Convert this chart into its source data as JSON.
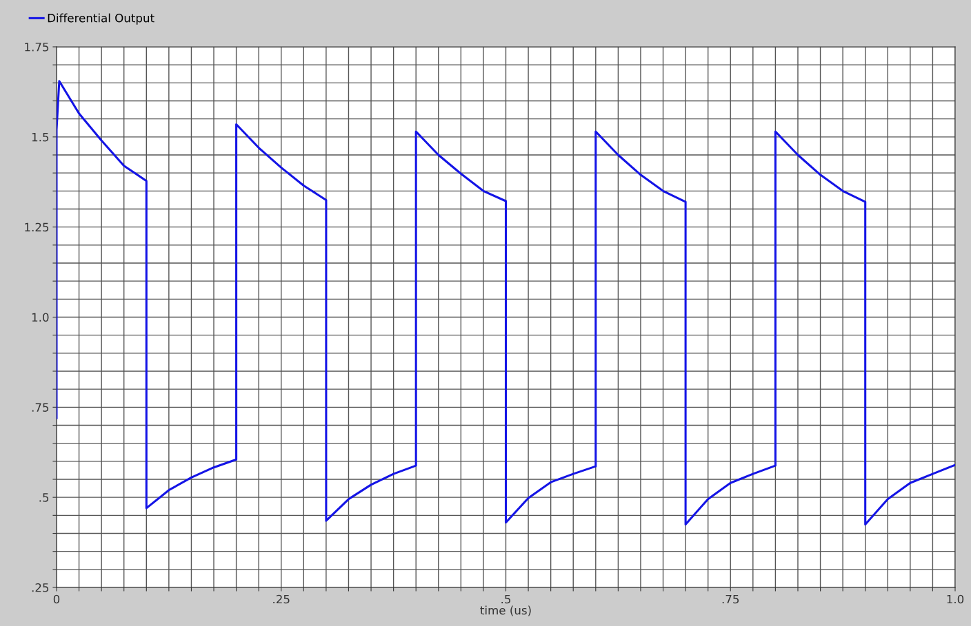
{
  "chart_data": {
    "type": "line",
    "xlabel": "time (us)",
    "legend": "top left",
    "grid": true,
    "line_style": "solid",
    "xlim": [
      0,
      1.0
    ],
    "ylim": [
      0.25,
      1.75
    ],
    "xticks": [
      {
        "value": 0,
        "label": "0"
      },
      {
        "value": 0.025,
        "label": null
      },
      {
        "value": 0.05,
        "label": null
      },
      {
        "value": 0.075,
        "label": null
      },
      {
        "value": 0.1,
        "label": null
      },
      {
        "value": 0.125,
        "label": null
      },
      {
        "value": 0.15,
        "label": null
      },
      {
        "value": 0.175,
        "label": null
      },
      {
        "value": 0.2,
        "label": null
      },
      {
        "value": 0.225,
        "label": null
      },
      {
        "value": 0.25,
        "label": ".25"
      },
      {
        "value": 0.275,
        "label": null
      },
      {
        "value": 0.3,
        "label": null
      },
      {
        "value": 0.325,
        "label": null
      },
      {
        "value": 0.35,
        "label": null
      },
      {
        "value": 0.375,
        "label": null
      },
      {
        "value": 0.4,
        "label": null
      },
      {
        "value": 0.425,
        "label": null
      },
      {
        "value": 0.45,
        "label": null
      },
      {
        "value": 0.475,
        "label": null
      },
      {
        "value": 0.5,
        "label": ".5"
      },
      {
        "value": 0.525,
        "label": null
      },
      {
        "value": 0.55,
        "label": null
      },
      {
        "value": 0.575,
        "label": null
      },
      {
        "value": 0.6,
        "label": null
      },
      {
        "value": 0.625,
        "label": null
      },
      {
        "value": 0.65,
        "label": null
      },
      {
        "value": 0.675,
        "label": null
      },
      {
        "value": 0.7,
        "label": null
      },
      {
        "value": 0.725,
        "label": null
      },
      {
        "value": 0.75,
        "label": ".75"
      },
      {
        "value": 0.775,
        "label": null
      },
      {
        "value": 0.8,
        "label": null
      },
      {
        "value": 0.825,
        "label": null
      },
      {
        "value": 0.85,
        "label": null
      },
      {
        "value": 0.875,
        "label": null
      },
      {
        "value": 0.9,
        "label": null
      },
      {
        "value": 0.925,
        "label": null
      },
      {
        "value": 0.95,
        "label": null
      },
      {
        "value": 0.975,
        "label": null
      },
      {
        "value": 1.0,
        "label": "1.0"
      }
    ],
    "yticks": [
      {
        "value": 0.25,
        "label": ".25"
      },
      {
        "value": 0.3,
        "label": null
      },
      {
        "value": 0.35,
        "label": null
      },
      {
        "value": 0.4,
        "label": null
      },
      {
        "value": 0.45,
        "label": null
      },
      {
        "value": 0.5,
        "label": ".5"
      },
      {
        "value": 0.55,
        "label": null
      },
      {
        "value": 0.6,
        "label": null
      },
      {
        "value": 0.65,
        "label": null
      },
      {
        "value": 0.7,
        "label": null
      },
      {
        "value": 0.75,
        "label": ".75"
      },
      {
        "value": 0.8,
        "label": null
      },
      {
        "value": 0.85,
        "label": null
      },
      {
        "value": 0.9,
        "label": null
      },
      {
        "value": 0.95,
        "label": null
      },
      {
        "value": 1.0,
        "label": "1.0"
      },
      {
        "value": 1.05,
        "label": null
      },
      {
        "value": 1.1,
        "label": null
      },
      {
        "value": 1.15,
        "label": null
      },
      {
        "value": 1.2,
        "label": null
      },
      {
        "value": 1.25,
        "label": "1.25"
      },
      {
        "value": 1.3,
        "label": null
      },
      {
        "value": 1.35,
        "label": null
      },
      {
        "value": 1.4,
        "label": null
      },
      {
        "value": 1.45,
        "label": null
      },
      {
        "value": 1.5,
        "label": "1.5"
      },
      {
        "value": 1.55,
        "label": null
      },
      {
        "value": 1.6,
        "label": null
      },
      {
        "value": 1.65,
        "label": null
      },
      {
        "value": 1.7,
        "label": null
      },
      {
        "value": 1.75,
        "label": "1.75"
      }
    ],
    "series": [
      {
        "name": "Differential Output",
        "color": "#1414e6",
        "x": [
          0,
          0,
          0.003,
          0.025,
          0.05,
          0.075,
          0.1,
          0.1,
          0.125,
          0.15,
          0.175,
          0.2,
          0.2,
          0.225,
          0.25,
          0.275,
          0.3,
          0.3,
          0.325,
          0.35,
          0.375,
          0.4,
          0.4,
          0.425,
          0.45,
          0.475,
          0.5,
          0.5,
          0.525,
          0.55,
          0.575,
          0.6,
          0.6,
          0.625,
          0.65,
          0.675,
          0.7,
          0.7,
          0.725,
          0.75,
          0.775,
          0.8,
          0.8,
          0.825,
          0.85,
          0.875,
          0.9,
          0.9,
          0.925,
          0.95,
          0.975,
          1.0
        ],
        "values": [
          0.72,
          1.52,
          1.655,
          1.565,
          1.49,
          1.42,
          1.378,
          0.47,
          0.52,
          0.555,
          0.583,
          0.605,
          1.535,
          1.47,
          1.415,
          1.365,
          1.325,
          0.435,
          0.495,
          0.535,
          0.565,
          0.588,
          1.515,
          1.45,
          1.398,
          1.35,
          1.322,
          0.43,
          0.498,
          0.542,
          0.565,
          0.586,
          1.515,
          1.45,
          1.395,
          1.35,
          1.32,
          0.425,
          0.495,
          0.54,
          0.565,
          0.588,
          1.515,
          1.45,
          1.395,
          1.35,
          1.32,
          0.425,
          0.495,
          0.54,
          0.565,
          0.59
        ]
      }
    ]
  }
}
